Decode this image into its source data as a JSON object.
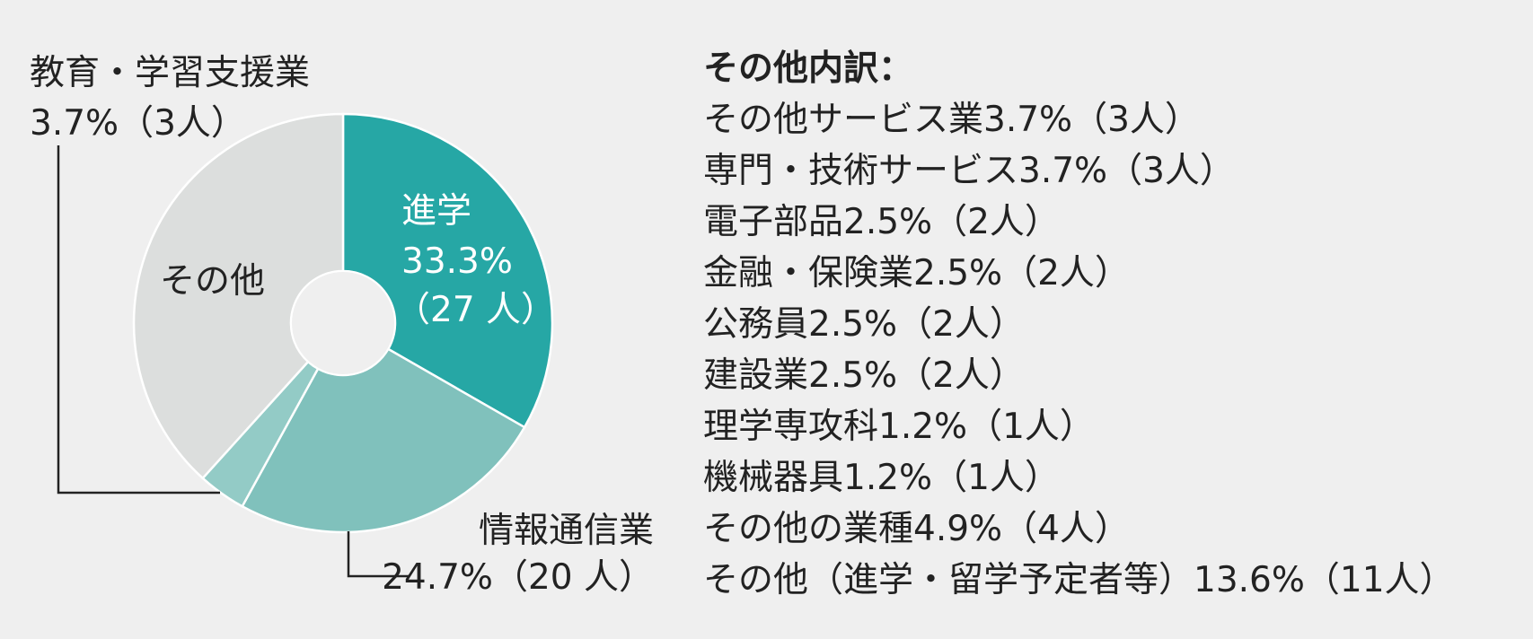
{
  "chart_data": {
    "type": "pie",
    "donut": true,
    "slices": [
      {
        "label": "進学",
        "percent": "33.3%",
        "count": "（27 人）",
        "value": 33.3,
        "color": "#26a7a5",
        "label_position": "inside"
      },
      {
        "label": "情報通信業",
        "percent_count": "24.7%（20 人）",
        "value": 24.7,
        "color": "#80c1bc",
        "label_position": "callout"
      },
      {
        "label": "教育・学習支援業",
        "percent_count": "3.7%（3人）",
        "value": 3.7,
        "color": "#93cbc6",
        "label_position": "callout"
      },
      {
        "label": "その他",
        "value": 38.3,
        "color": "#dcdedd",
        "label_position": "inside"
      }
    ]
  },
  "breakdown": {
    "title": "その他内訳：",
    "items": [
      "その他サービス業3.7%（3人）",
      "専門・技術サービス3.7%（3人）",
      "電子部品2.5%（2人）",
      "金融・保険業2.5%（2人）",
      "公務員2.5%（2人）",
      "建設業2.5%（2人）",
      "理学専攻科1.2%（1人）",
      "機械器具1.2%（1人）",
      "その他の業種4.9%（4人）",
      "その他（進学・留学予定者等）13.6%（11人）"
    ]
  }
}
